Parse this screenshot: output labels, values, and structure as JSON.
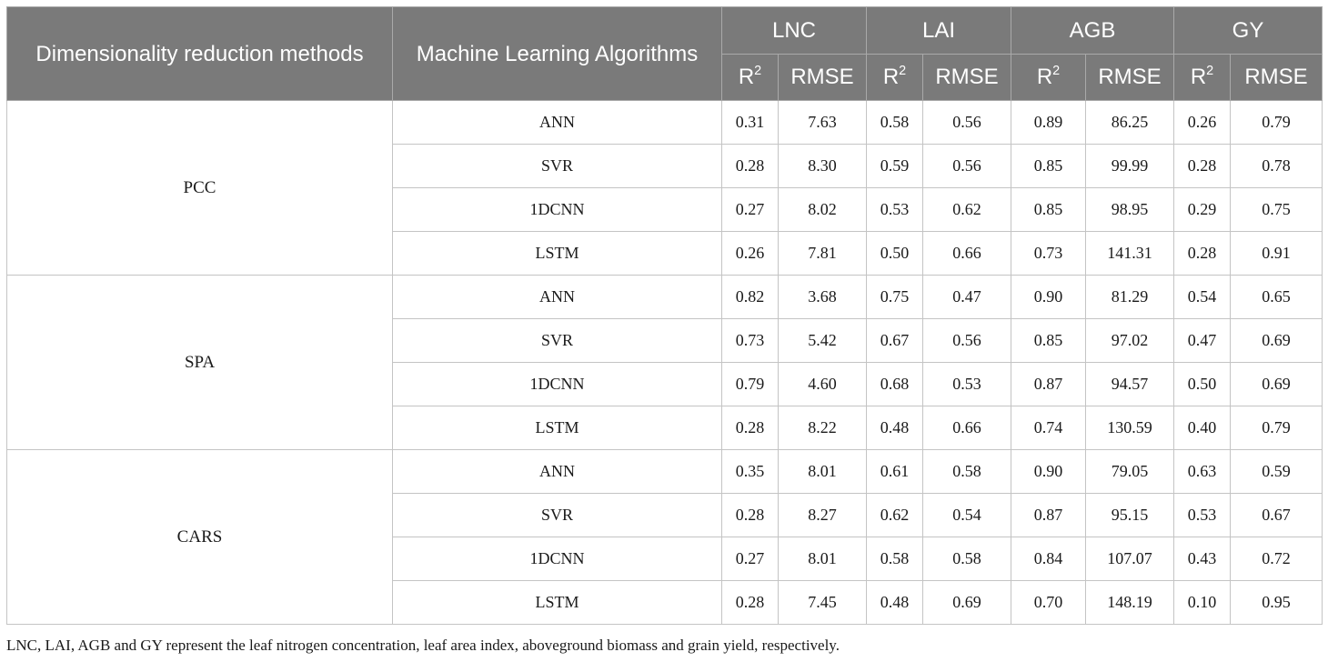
{
  "header": {
    "method_col": "Dimensionality reduction methods",
    "algo_col": "Machine Learning Algorithms",
    "groups": [
      "LNC",
      "LAI",
      "AGB",
      "GY"
    ],
    "r2_base": "R",
    "r2_sup": "2",
    "rmse": "RMSE"
  },
  "methods": [
    {
      "name": "PCC",
      "rows": [
        {
          "algo": "ANN",
          "values": [
            "0.31",
            "7.63",
            "0.58",
            "0.56",
            "0.89",
            "86.25",
            "0.26",
            "0.79"
          ]
        },
        {
          "algo": "SVR",
          "values": [
            "0.28",
            "8.30",
            "0.59",
            "0.56",
            "0.85",
            "99.99",
            "0.28",
            "0.78"
          ]
        },
        {
          "algo": "1DCNN",
          "values": [
            "0.27",
            "8.02",
            "0.53",
            "0.62",
            "0.85",
            "98.95",
            "0.29",
            "0.75"
          ]
        },
        {
          "algo": "LSTM",
          "values": [
            "0.26",
            "7.81",
            "0.50",
            "0.66",
            "0.73",
            "141.31",
            "0.28",
            "0.91"
          ]
        }
      ]
    },
    {
      "name": "SPA",
      "rows": [
        {
          "algo": "ANN",
          "values": [
            "0.82",
            "3.68",
            "0.75",
            "0.47",
            "0.90",
            "81.29",
            "0.54",
            "0.65"
          ]
        },
        {
          "algo": "SVR",
          "values": [
            "0.73",
            "5.42",
            "0.67",
            "0.56",
            "0.85",
            "97.02",
            "0.47",
            "0.69"
          ]
        },
        {
          "algo": "1DCNN",
          "values": [
            "0.79",
            "4.60",
            "0.68",
            "0.53",
            "0.87",
            "94.57",
            "0.50",
            "0.69"
          ]
        },
        {
          "algo": "LSTM",
          "values": [
            "0.28",
            "8.22",
            "0.48",
            "0.66",
            "0.74",
            "130.59",
            "0.40",
            "0.79"
          ]
        }
      ]
    },
    {
      "name": "CARS",
      "rows": [
        {
          "algo": "ANN",
          "values": [
            "0.35",
            "8.01",
            "0.61",
            "0.58",
            "0.90",
            "79.05",
            "0.63",
            "0.59"
          ]
        },
        {
          "algo": "SVR",
          "values": [
            "0.28",
            "8.27",
            "0.62",
            "0.54",
            "0.87",
            "95.15",
            "0.53",
            "0.67"
          ]
        },
        {
          "algo": "1DCNN",
          "values": [
            "0.27",
            "8.01",
            "0.58",
            "0.58",
            "0.84",
            "107.07",
            "0.43",
            "0.72"
          ]
        },
        {
          "algo": "LSTM",
          "values": [
            "0.28",
            "7.45",
            "0.48",
            "0.69",
            "0.70",
            "148.19",
            "0.10",
            "0.95"
          ]
        }
      ]
    }
  ],
  "footnote": "LNC, LAI, AGB and GY represent the leaf nitrogen concentration, leaf area index, aboveground biomass and grain yield, respectively."
}
